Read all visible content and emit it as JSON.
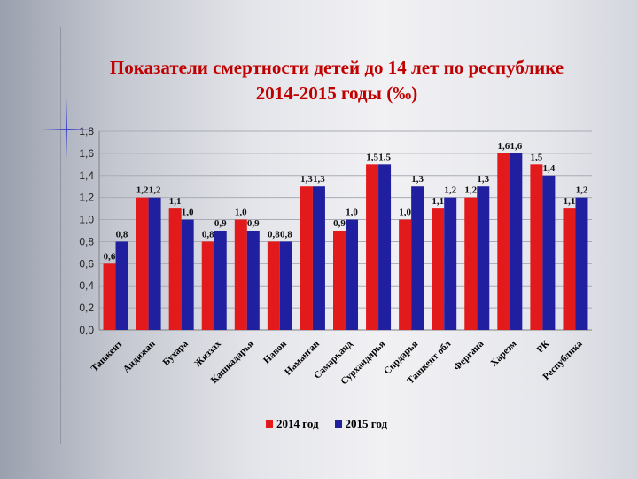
{
  "slide": {
    "title_line1": "Показатели смертности детей до 14 лет по республике",
    "title_line2": "2014-2015 годы (‰)"
  },
  "chart_data": {
    "type": "bar",
    "categories": [
      "Ташкент",
      "Андижан",
      "Бухара",
      "Жиззах",
      "Кашкадарья",
      "Навои",
      "Наманган",
      "Самарканд",
      "Сурхандарья",
      "Сирдарья",
      "Ташкент обл",
      "Фергана",
      "Харезм",
      "РК",
      "Республика"
    ],
    "series": [
      {
        "name": "2014 год",
        "color": "#e31a1c",
        "values": [
          0.6,
          1.2,
          1.1,
          0.8,
          1.0,
          0.8,
          1.3,
          0.9,
          1.5,
          1.0,
          1.1,
          1.2,
          1.6,
          1.5,
          1.1
        ]
      },
      {
        "name": "2015 год",
        "color": "#1f1fa0",
        "values": [
          0.8,
          1.2,
          1.0,
          0.9,
          0.9,
          0.8,
          1.3,
          1.0,
          1.5,
          1.3,
          1.2,
          1.3,
          1.6,
          1.4,
          1.2
        ]
      }
    ],
    "data_labels": [
      [
        "0,6",
        "1,2",
        "1,1",
        "0,8",
        "1,0",
        "0,8",
        "1,3",
        "0,9",
        "1,5",
        "1,0",
        "1,1",
        "1,2",
        "1,6",
        "1,5",
        "1,1"
      ],
      [
        "0,8",
        "1,2",
        "1,0",
        "0,9",
        "0,9",
        "0,8",
        "1,3",
        "1,0",
        "1,5",
        "1,3",
        "1,2",
        "1,3",
        "1,6",
        "1,4",
        "1,2"
      ]
    ],
    "yticks": [
      "0,0",
      "0,2",
      "0,4",
      "0,6",
      "0,8",
      "1,0",
      "1,2",
      "1,4",
      "1,6",
      "1,8"
    ],
    "ylim": [
      0,
      1.8
    ],
    "grid": true,
    "legend": "bottom"
  }
}
